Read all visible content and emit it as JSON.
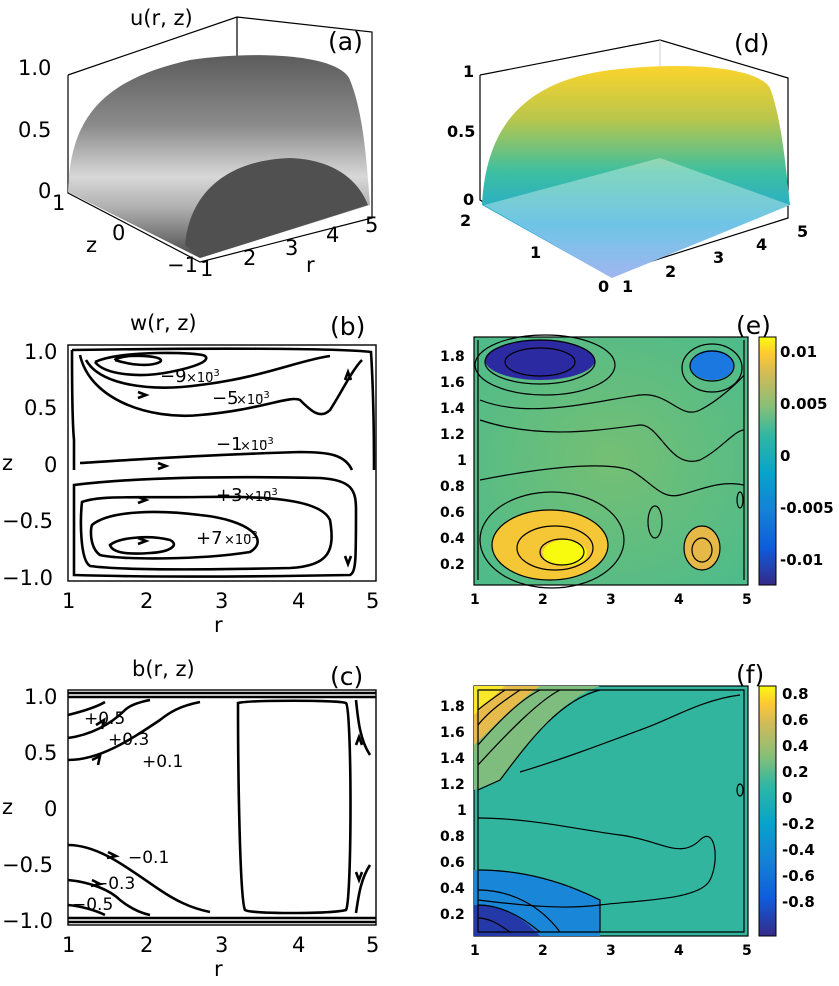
{
  "panels": {
    "a": {
      "letter": "(a)",
      "title": "u(r, z)",
      "z_ticks": [
        "1.0",
        "0.5",
        "0"
      ],
      "zaxis_label": "z",
      "z_side_ticks": [
        "1",
        "0",
        "−1"
      ],
      "r_ticks": [
        "1",
        "2",
        "3",
        "4",
        "5"
      ],
      "r_label": "r"
    },
    "b": {
      "letter": "(b)",
      "title": "w(r, z)",
      "y_ticks": [
        "1.0",
        "0.5",
        "0",
        "−0.5",
        "−1.0"
      ],
      "ylabel": "z",
      "x_ticks": [
        "1",
        "2",
        "3",
        "4",
        "5"
      ],
      "xlabel": "r",
      "contour_labels": [
        "−9",
        "−5",
        "−1",
        "+3",
        "+7"
      ],
      "scale_text": "×10",
      "scale_exp": "−3"
    },
    "c": {
      "letter": "(c)",
      "title": "b(r, z)",
      "y_ticks": [
        "1.0",
        "0.5",
        "0",
        "−0.5",
        "−1.0"
      ],
      "ylabel": "z",
      "x_ticks": [
        "1",
        "2",
        "3",
        "4",
        "5"
      ],
      "xlabel": "r",
      "contour_labels": [
        "+0.5",
        "+0.3",
        "+0.1",
        "−0.1",
        "−0.3",
        "−0.5"
      ]
    },
    "d": {
      "letter": "(d)",
      "z_ticks": [
        "1",
        "0.5",
        "0"
      ],
      "left_ticks": [
        "2",
        "1",
        "0"
      ],
      "r_ticks": [
        "1",
        "2",
        "3",
        "4",
        "5"
      ]
    },
    "e": {
      "letter": "(e)",
      "y_ticks": [
        "1.8",
        "1.6",
        "1.4",
        "1.2",
        "1",
        "0.8",
        "0.6",
        "0.4",
        "0.2"
      ],
      "x_ticks": [
        "1",
        "2",
        "3",
        "4",
        "5"
      ],
      "colorbar_ticks": [
        "0.01",
        "0.005",
        "0",
        "-0.005",
        "-0.01"
      ]
    },
    "f": {
      "letter": "(f)",
      "y_ticks": [
        "1.8",
        "1.6",
        "1.4",
        "1.2",
        "1",
        "0.8",
        "0.6",
        "0.4",
        "0.2"
      ],
      "x_ticks": [
        "1",
        "2",
        "3",
        "4",
        "5"
      ],
      "colorbar_ticks": [
        "0.8",
        "0.6",
        "0.4",
        "0.2",
        "0",
        "-0.2",
        "-0.4",
        "-0.6",
        "-0.8"
      ]
    }
  },
  "colors": {
    "parula_low": "#352a87",
    "parula_mid": "#21b1a2",
    "parula_high": "#f9fb0e"
  }
}
